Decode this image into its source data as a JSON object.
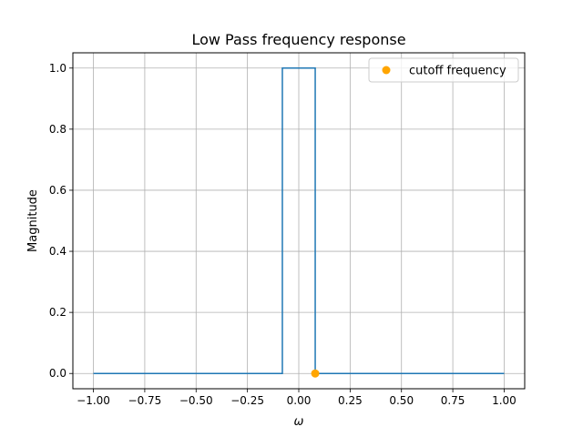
{
  "chart_data": {
    "type": "line",
    "title": "Low Pass frequency response",
    "xlabel": "ω",
    "ylabel": "Magnitude",
    "xlim": [
      -1.1,
      1.1
    ],
    "ylim": [
      -0.05,
      1.05
    ],
    "xticks": [
      -1.0,
      -0.75,
      -0.5,
      -0.25,
      0.0,
      0.25,
      0.5,
      0.75,
      1.0
    ],
    "xtick_labels": [
      "−1.00",
      "−0.75",
      "−0.50",
      "−0.25",
      "0.00",
      "0.25",
      "0.50",
      "0.75",
      "1.00"
    ],
    "yticks": [
      0.0,
      0.2,
      0.4,
      0.6,
      0.8,
      1.0
    ],
    "ytick_labels": [
      "0.0",
      "0.2",
      "0.4",
      "0.6",
      "0.8",
      "1.0"
    ],
    "grid": true,
    "legend_position": "upper right",
    "series": [
      {
        "kind": "line",
        "color": "#1f77b4",
        "x": [
          -1.0,
          -0.08,
          -0.08,
          0.08,
          0.08,
          1.0
        ],
        "y": [
          0.0,
          0.0,
          1.0,
          1.0,
          0.0,
          0.0
        ]
      },
      {
        "kind": "scatter",
        "name": "cutoff frequency",
        "color": "#ffa500",
        "x": [
          0.08
        ],
        "y": [
          0.0
        ]
      }
    ]
  }
}
